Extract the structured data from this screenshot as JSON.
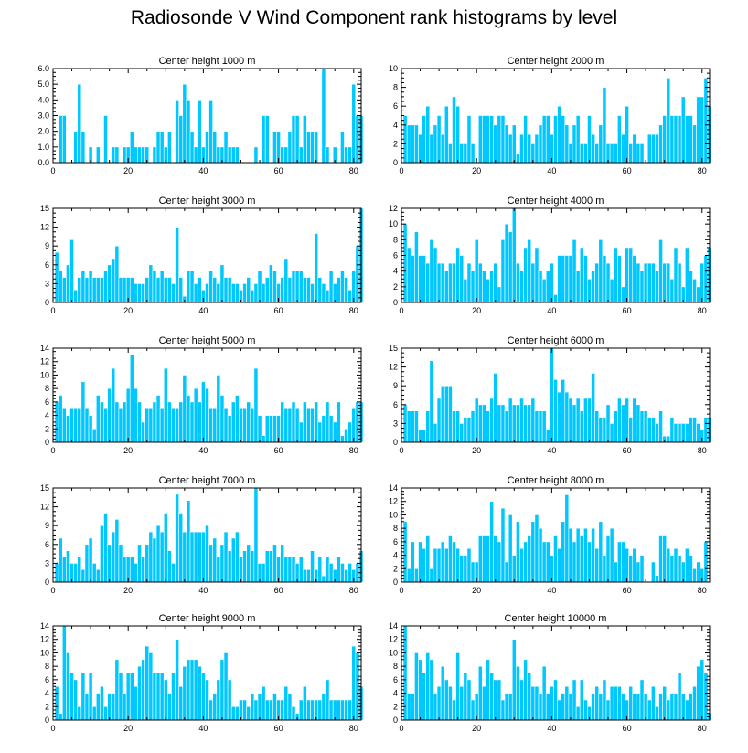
{
  "title": "Radiosonde V Wind Component rank histograms by level",
  "colors": {
    "bar": "#00c8ff",
    "bar_edge": "#ffffff",
    "axis": "#000000"
  },
  "chart_data": [
    {
      "type": "bar",
      "title": "Center height 1000 m",
      "xlabel": "",
      "ylabel": "",
      "xlim": [
        0,
        82
      ],
      "ylim": [
        0,
        6
      ],
      "xticks": [
        0,
        20,
        40,
        60,
        80
      ],
      "ytick_labels": [
        "0.0",
        "1.0",
        "2.0",
        "3.0",
        "4.0",
        "5.0",
        "6.0"
      ],
      "x_start": 1,
      "values": [
        0,
        3,
        3,
        0,
        0,
        2,
        5,
        2,
        0,
        1,
        0,
        1,
        0,
        3,
        0,
        1,
        1,
        0,
        1,
        1,
        2,
        1,
        1,
        1,
        1,
        0,
        1,
        2,
        2,
        1,
        2,
        0,
        4,
        3,
        5,
        4,
        2,
        1,
        4,
        1,
        2,
        4,
        2,
        1,
        1,
        2,
        1,
        1,
        1,
        0,
        0,
        0,
        0,
        1,
        0,
        3,
        3,
        0,
        2,
        2,
        1,
        1,
        2,
        3,
        3,
        1,
        3,
        2,
        2,
        2,
        0,
        6,
        1,
        0,
        1,
        0,
        2,
        1,
        1,
        5,
        3,
        3
      ]
    },
    {
      "type": "bar",
      "title": "Center height 2000 m",
      "xlabel": "",
      "ylabel": "",
      "xlim": [
        0,
        82
      ],
      "ylim": [
        0,
        10
      ],
      "xticks": [
        0,
        20,
        40,
        60,
        80
      ],
      "ytick_labels": [
        "0",
        "2",
        "4",
        "6",
        "8",
        "10"
      ],
      "x_start": 1,
      "values": [
        5,
        4,
        4,
        4,
        3,
        5,
        6,
        3,
        4,
        5,
        3,
        6,
        2,
        7,
        6,
        2,
        2,
        5,
        2,
        0,
        5,
        5,
        5,
        5,
        4,
        5,
        5,
        4,
        3,
        4,
        1,
        3,
        5,
        3,
        2,
        3,
        4,
        5,
        5,
        3,
        5,
        6,
        5,
        4,
        2,
        4,
        5,
        2,
        2,
        5,
        3,
        2,
        4,
        8,
        2,
        2,
        2,
        5,
        3,
        6,
        2,
        3,
        2,
        2,
        0,
        3,
        3,
        3,
        4,
        5,
        9,
        5,
        5,
        5,
        7,
        5,
        5,
        4,
        7,
        7,
        9,
        6
      ]
    },
    {
      "type": "bar",
      "title": "Center height 3000 m",
      "xlabel": "",
      "ylabel": "",
      "xlim": [
        0,
        82
      ],
      "ylim": [
        0,
        15
      ],
      "xticks": [
        0,
        20,
        40,
        60,
        80
      ],
      "ytick_labels": [
        "0",
        "3",
        "6",
        "9",
        "12",
        "15"
      ],
      "x_start": 1,
      "values": [
        8,
        5,
        4,
        6,
        10,
        2,
        4,
        5,
        4,
        5,
        4,
        4,
        4,
        5,
        6,
        7,
        9,
        4,
        4,
        4,
        4,
        3,
        3,
        3,
        4,
        6,
        5,
        4,
        5,
        4,
        4,
        3,
        12,
        4,
        1,
        5,
        5,
        3,
        4,
        2,
        3,
        5,
        4,
        3,
        6,
        4,
        4,
        3,
        3,
        2,
        3,
        4,
        2,
        3,
        5,
        3,
        4,
        6,
        5,
        3,
        4,
        7,
        4,
        5,
        5,
        5,
        4,
        4,
        3,
        11,
        4,
        3,
        2,
        5,
        3,
        4,
        5,
        4,
        2,
        5,
        9,
        15
      ]
    },
    {
      "type": "bar",
      "title": "Center height 4000 m",
      "xlabel": "",
      "ylabel": "",
      "xlim": [
        0,
        82
      ],
      "ylim": [
        0,
        12
      ],
      "xticks": [
        0,
        20,
        40,
        60,
        80
      ],
      "ytick_labels": [
        "0",
        "2",
        "4",
        "6",
        "8",
        "10",
        "12"
      ],
      "x_start": 1,
      "values": [
        10,
        7,
        6,
        9,
        6,
        6,
        5,
        8,
        7,
        5,
        5,
        4,
        5,
        5,
        7,
        6,
        3,
        5,
        4,
        8,
        5,
        4,
        3,
        4,
        5,
        2,
        8,
        10,
        9,
        12,
        5,
        4,
        7,
        8,
        5,
        7,
        4,
        3,
        4,
        5,
        1,
        6,
        6,
        6,
        6,
        8,
        4,
        7,
        6,
        3,
        4,
        5,
        8,
        6,
        5,
        3,
        7,
        6,
        2,
        7,
        7,
        6,
        5,
        4,
        5,
        5,
        5,
        4,
        8,
        5,
        5,
        3,
        7,
        5,
        2,
        7,
        4,
        3,
        2,
        5,
        6,
        7
      ]
    },
    {
      "type": "bar",
      "title": "Center height 5000 m",
      "xlabel": "",
      "ylabel": "",
      "xlim": [
        0,
        82
      ],
      "ylim": [
        0,
        14
      ],
      "xticks": [
        0,
        20,
        40,
        60,
        80
      ],
      "ytick_labels": [
        "0",
        "2",
        "4",
        "6",
        "8",
        "10",
        "12",
        "14"
      ],
      "x_start": 1,
      "values": [
        6,
        7,
        5,
        4,
        5,
        5,
        5,
        9,
        5,
        4,
        2,
        7,
        6,
        5,
        8,
        11,
        6,
        5,
        6,
        8,
        13,
        8,
        6,
        3,
        5,
        5,
        6,
        7,
        5,
        11,
        6,
        5,
        5,
        6,
        10,
        7,
        6,
        8,
        6,
        9,
        8,
        5,
        5,
        10,
        7,
        5,
        4,
        6,
        7,
        5,
        5,
        6,
        5,
        11,
        4,
        1,
        4,
        4,
        4,
        4,
        6,
        5,
        5,
        6,
        5,
        3,
        6,
        5,
        5,
        6,
        3,
        4,
        6,
        4,
        3,
        6,
        1,
        2,
        3,
        5,
        6,
        6
      ]
    },
    {
      "type": "bar",
      "title": "Center height 6000 m",
      "xlabel": "",
      "ylabel": "",
      "xlim": [
        0,
        82
      ],
      "ylim": [
        0,
        15
      ],
      "xticks": [
        0,
        20,
        40,
        60,
        80
      ],
      "ytick_labels": [
        "0",
        "3",
        "6",
        "9",
        "12",
        "15"
      ],
      "x_start": 1,
      "values": [
        6,
        5,
        5,
        5,
        2,
        2,
        5,
        13,
        3,
        7,
        9,
        9,
        9,
        5,
        5,
        3,
        4,
        4,
        5,
        7,
        6,
        6,
        5,
        7,
        11,
        6,
        6,
        5,
        7,
        6,
        6,
        7,
        6,
        6,
        7,
        5,
        5,
        5,
        2,
        15,
        10,
        8,
        10,
        8,
        7,
        6,
        7,
        5,
        7,
        7,
        11,
        5,
        4,
        4,
        6,
        3,
        5,
        7,
        6,
        7,
        4,
        7,
        6,
        5,
        5,
        4,
        4,
        3,
        5,
        1,
        1,
        4,
        3,
        3,
        3,
        3,
        4,
        4,
        3,
        2,
        4,
        4
      ]
    },
    {
      "type": "bar",
      "title": "Center height 7000 m",
      "xlabel": "",
      "ylabel": "",
      "xlim": [
        0,
        82
      ],
      "ylim": [
        0,
        15
      ],
      "xticks": [
        0,
        20,
        40,
        60,
        80
      ],
      "ytick_labels": [
        "0",
        "3",
        "6",
        "9",
        "12",
        "15"
      ],
      "x_start": 1,
      "values": [
        3,
        7,
        4,
        5,
        3,
        3,
        4,
        2,
        6,
        7,
        3,
        2,
        9,
        11,
        6,
        8,
        10,
        6,
        4,
        4,
        4,
        3,
        6,
        4,
        6,
        8,
        7,
        9,
        8,
        11,
        5,
        3,
        14,
        11,
        8,
        13,
        8,
        8,
        8,
        8,
        9,
        6,
        7,
        4,
        6,
        8,
        5,
        7,
        8,
        4,
        5,
        6,
        5,
        15,
        3,
        3,
        5,
        5,
        6,
        4,
        6,
        4,
        4,
        4,
        3,
        4,
        2,
        2,
        5,
        2,
        4,
        1,
        4,
        3,
        2,
        4,
        3,
        2,
        3,
        2,
        3,
        5
      ]
    },
    {
      "type": "bar",
      "title": "Center height 8000 m",
      "xlabel": "",
      "ylabel": "",
      "xlim": [
        0,
        82
      ],
      "ylim": [
        0,
        14
      ],
      "xticks": [
        0,
        20,
        40,
        60,
        80
      ],
      "ytick_labels": [
        "0",
        "2",
        "4",
        "6",
        "8",
        "10",
        "12",
        "14"
      ],
      "x_start": 1,
      "values": [
        9,
        2,
        6,
        2,
        6,
        5,
        7,
        2,
        5,
        5,
        6,
        5,
        7,
        6,
        5,
        4,
        4,
        5,
        3,
        3,
        7,
        7,
        7,
        12,
        7,
        6,
        11,
        3,
        10,
        4,
        9,
        5,
        6,
        7,
        9,
        10,
        8,
        6,
        6,
        4,
        7,
        5,
        9,
        13,
        8,
        6,
        8,
        7,
        8,
        6,
        8,
        5,
        9,
        4,
        7,
        8,
        3,
        6,
        6,
        5,
        4,
        5,
        3,
        4,
        0,
        0,
        3,
        1,
        7,
        7,
        5,
        4,
        5,
        4,
        3,
        5,
        4,
        2,
        3,
        2,
        6,
        0
      ]
    },
    {
      "type": "bar",
      "title": "Center height 9000 m",
      "xlabel": "",
      "ylabel": "",
      "xlim": [
        0,
        82
      ],
      "ylim": [
        0,
        14
      ],
      "xticks": [
        0,
        20,
        40,
        60,
        80
      ],
      "ytick_labels": [
        "0",
        "2",
        "4",
        "6",
        "8",
        "10",
        "12",
        "14"
      ],
      "x_start": 1,
      "values": [
        5,
        1,
        14,
        10,
        7,
        6,
        2,
        7,
        4,
        7,
        2,
        4,
        5,
        2,
        4,
        4,
        9,
        7,
        4,
        7,
        7,
        5,
        8,
        9,
        11,
        10,
        7,
        7,
        7,
        6,
        4,
        7,
        12,
        5,
        8,
        9,
        9,
        9,
        8,
        7,
        6,
        3,
        4,
        6,
        9,
        10,
        6,
        2,
        2,
        3,
        3,
        2,
        4,
        3,
        4,
        5,
        3,
        3,
        4,
        3,
        3,
        5,
        4,
        2,
        1,
        3,
        5,
        3,
        3,
        3,
        3,
        4,
        6,
        3,
        3,
        3,
        3,
        3,
        3,
        11,
        10,
        5
      ]
    },
    {
      "type": "bar",
      "title": "Center height 10000 m",
      "xlabel": "",
      "ylabel": "",
      "xlim": [
        0,
        82
      ],
      "ylim": [
        0,
        14
      ],
      "xticks": [
        0,
        20,
        40,
        60,
        80
      ],
      "ytick_labels": [
        "0",
        "2",
        "4",
        "6",
        "8",
        "10",
        "12",
        "14"
      ],
      "x_start": 1,
      "values": [
        14,
        4,
        4,
        10,
        9,
        7,
        10,
        9,
        4,
        5,
        8,
        6,
        5,
        3,
        10,
        5,
        7,
        6,
        3,
        4,
        8,
        5,
        9,
        7,
        6,
        6,
        3,
        4,
        4,
        12,
        8,
        6,
        9,
        7,
        5,
        5,
        4,
        8,
        4,
        5,
        6,
        3,
        4,
        5,
        4,
        6,
        2,
        6,
        3,
        2,
        4,
        5,
        4,
        6,
        3,
        5,
        5,
        5,
        4,
        3,
        5,
        4,
        4,
        6,
        4,
        3,
        5,
        2,
        4,
        5,
        3,
        4,
        4,
        7,
        4,
        3,
        4,
        5,
        8,
        9,
        7,
        1
      ]
    }
  ]
}
